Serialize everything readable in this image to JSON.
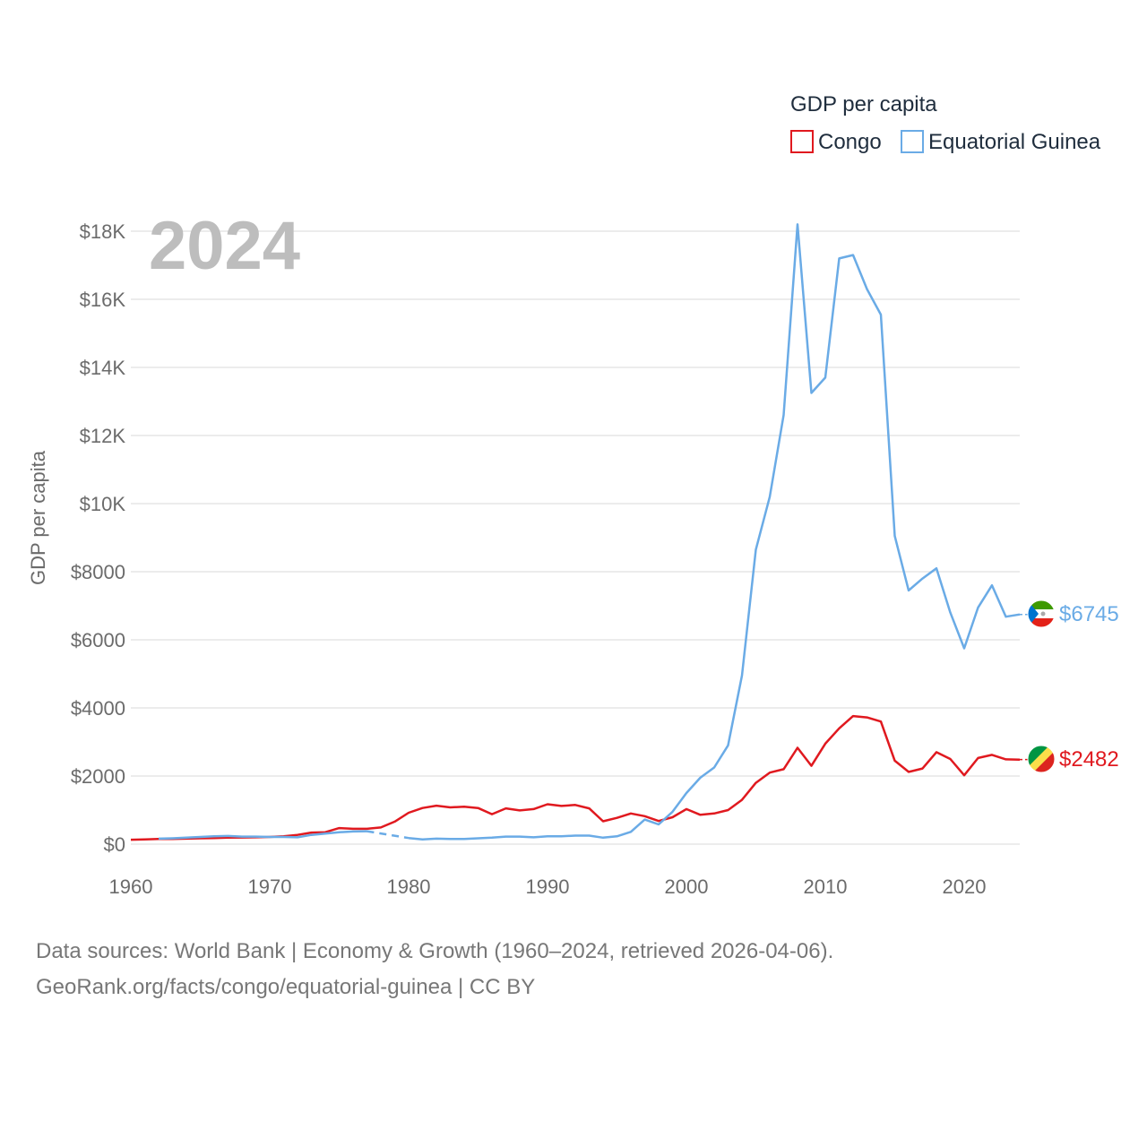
{
  "colors": {
    "congo": "#e0191f",
    "eq_guinea": "#6aabe6",
    "grid": "#e6e6e6",
    "text": "#6b6b6b"
  },
  "footer": {
    "line1": "Data sources: World Bank | Economy & Growth (1960–2024, retrieved 2026-04-06).",
    "line2": "GeoRank.org/facts/congo/equatorial-guinea | CC BY"
  },
  "flag_icons": [
    "equatorial-guinea-flag-icon",
    "congo-flag-icon"
  ],
  "chart_data": {
    "type": "line",
    "legend_title": "GDP per capita",
    "legend_position": "top-right",
    "year_label": "2024",
    "ylabel": "GDP per capita",
    "xlim": [
      1960,
      2024
    ],
    "ylim": [
      0,
      18000
    ],
    "xticks": [
      1960,
      1970,
      1980,
      1990,
      2000,
      2010,
      2020
    ],
    "xtick_labels": [
      "1960",
      "1970",
      "1980",
      "1990",
      "2000",
      "2010",
      "2020"
    ],
    "yticks": [
      0,
      2000,
      4000,
      6000,
      8000,
      10000,
      12000,
      14000,
      16000,
      18000
    ],
    "ytick_labels": [
      "$0",
      "$2000",
      "$4000",
      "$6000",
      "$8000",
      "$10K",
      "$12K",
      "$14K",
      "$16K",
      "$18K"
    ],
    "series": [
      {
        "name": "Congo",
        "color_key": "congo",
        "end_label": "$2482",
        "points": [
          [
            1960,
            130
          ],
          [
            1961,
            140
          ],
          [
            1962,
            150
          ],
          [
            1963,
            150
          ],
          [
            1964,
            160
          ],
          [
            1965,
            170
          ],
          [
            1966,
            180
          ],
          [
            1967,
            190
          ],
          [
            1968,
            195
          ],
          [
            1969,
            200
          ],
          [
            1970,
            210
          ],
          [
            1971,
            230
          ],
          [
            1972,
            270
          ],
          [
            1973,
            340
          ],
          [
            1974,
            350
          ],
          [
            1975,
            470
          ],
          [
            1976,
            450
          ],
          [
            1977,
            450
          ],
          [
            1978,
            490
          ],
          [
            1979,
            660
          ],
          [
            1980,
            920
          ],
          [
            1981,
            1060
          ],
          [
            1982,
            1130
          ],
          [
            1983,
            1080
          ],
          [
            1984,
            1100
          ],
          [
            1985,
            1060
          ],
          [
            1986,
            880
          ],
          [
            1987,
            1050
          ],
          [
            1988,
            990
          ],
          [
            1989,
            1030
          ],
          [
            1990,
            1170
          ],
          [
            1991,
            1120
          ],
          [
            1992,
            1150
          ],
          [
            1993,
            1050
          ],
          [
            1994,
            670
          ],
          [
            1995,
            770
          ],
          [
            1996,
            900
          ],
          [
            1997,
            820
          ],
          [
            1998,
            680
          ],
          [
            1999,
            790
          ],
          [
            2000,
            1030
          ],
          [
            2001,
            860
          ],
          [
            2002,
            900
          ],
          [
            2003,
            1000
          ],
          [
            2004,
            1300
          ],
          [
            2005,
            1800
          ],
          [
            2006,
            2100
          ],
          [
            2007,
            2200
          ],
          [
            2008,
            2830
          ],
          [
            2009,
            2300
          ],
          [
            2010,
            2950
          ],
          [
            2011,
            3400
          ],
          [
            2012,
            3760
          ],
          [
            2013,
            3720
          ],
          [
            2014,
            3600
          ],
          [
            2015,
            2450
          ],
          [
            2016,
            2120
          ],
          [
            2017,
            2220
          ],
          [
            2018,
            2700
          ],
          [
            2019,
            2500
          ],
          [
            2020,
            2020
          ],
          [
            2021,
            2530
          ],
          [
            2022,
            2620
          ],
          [
            2023,
            2490
          ],
          [
            2024,
            2482
          ]
        ]
      },
      {
        "name": "Equatorial Guinea",
        "color_key": "eq_guinea",
        "end_label": "$6745",
        "dashed_range": [
          1977,
          1980
        ],
        "points": [
          [
            1962,
            160
          ],
          [
            1963,
            170
          ],
          [
            1964,
            190
          ],
          [
            1965,
            210
          ],
          [
            1966,
            230
          ],
          [
            1967,
            240
          ],
          [
            1968,
            220
          ],
          [
            1969,
            220
          ],
          [
            1970,
            210
          ],
          [
            1971,
            210
          ],
          [
            1972,
            200
          ],
          [
            1973,
            270
          ],
          [
            1974,
            310
          ],
          [
            1975,
            350
          ],
          [
            1976,
            370
          ],
          [
            1977,
            380
          ],
          [
            1980,
            180
          ],
          [
            1981,
            140
          ],
          [
            1982,
            160
          ],
          [
            1983,
            150
          ],
          [
            1984,
            150
          ],
          [
            1985,
            170
          ],
          [
            1986,
            190
          ],
          [
            1987,
            220
          ],
          [
            1988,
            220
          ],
          [
            1989,
            200
          ],
          [
            1990,
            230
          ],
          [
            1991,
            230
          ],
          [
            1992,
            250
          ],
          [
            1993,
            250
          ],
          [
            1994,
            190
          ],
          [
            1995,
            230
          ],
          [
            1996,
            360
          ],
          [
            1997,
            720
          ],
          [
            1998,
            580
          ],
          [
            1999,
            950
          ],
          [
            2000,
            1500
          ],
          [
            2001,
            1950
          ],
          [
            2002,
            2250
          ],
          [
            2003,
            2900
          ],
          [
            2004,
            4950
          ],
          [
            2005,
            8650
          ],
          [
            2006,
            10200
          ],
          [
            2007,
            12600
          ],
          [
            2008,
            18200
          ],
          [
            2009,
            13250
          ],
          [
            2010,
            13700
          ],
          [
            2011,
            17200
          ],
          [
            2012,
            17300
          ],
          [
            2013,
            16300
          ],
          [
            2014,
            15550
          ],
          [
            2015,
            9050
          ],
          [
            2016,
            7450
          ],
          [
            2017,
            7800
          ],
          [
            2018,
            8100
          ],
          [
            2019,
            6800
          ],
          [
            2020,
            5750
          ],
          [
            2021,
            6950
          ],
          [
            2022,
            7600
          ],
          [
            2023,
            6680
          ],
          [
            2024,
            6745
          ]
        ]
      }
    ]
  }
}
